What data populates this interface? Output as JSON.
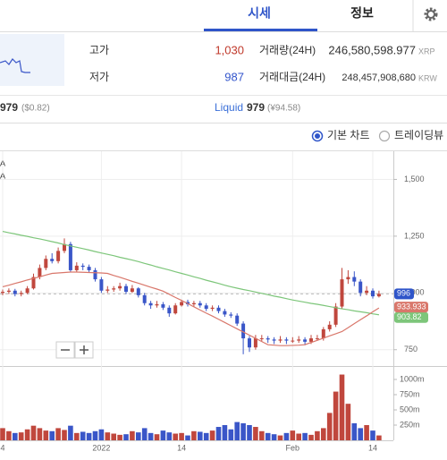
{
  "tabs": [
    "시세",
    "정보"
  ],
  "stats": {
    "high_label": "고가",
    "high": "1,030",
    "low_label": "저가",
    "low": "987",
    "volume_label": "거래량(24H)",
    "volume": "246,580,598.977",
    "volume_unit": "XRP",
    "value_label": "거래대금(24H)",
    "value": "248,457,908,680",
    "value_unit": "KRW"
  },
  "prices": [
    {
      "price": "979",
      "converted": "($0.82)"
    },
    {
      "exchange": "Liquid",
      "price": "979",
      "converted": "(¥94.58)"
    }
  ],
  "chart_options": [
    {
      "label": "기본 차트",
      "selected": true
    },
    {
      "label": "트레이딩뷰",
      "selected": false
    }
  ],
  "chart": {
    "type": "candlestick",
    "legend_fragments": [
      "A",
      "A"
    ],
    "categories": [
      "4",
      null,
      null,
      null,
      null,
      null,
      null,
      null,
      null,
      null,
      null,
      null,
      null,
      null,
      null,
      null,
      "2022",
      null,
      null,
      null,
      null,
      null,
      null,
      null,
      null,
      null,
      null,
      null,
      null,
      "14",
      null,
      null,
      null,
      null,
      null,
      null,
      null,
      null,
      null,
      null,
      null,
      null,
      null,
      null,
      null,
      null,
      null,
      "Feb",
      null,
      null,
      null,
      null,
      null,
      null,
      null,
      null,
      null,
      null,
      null,
      null,
      "14",
      null
    ],
    "open": [
      1000,
      1005,
      1010,
      995,
      1000,
      1020,
      1070,
      1110,
      1150,
      1140,
      1185,
      1215,
      1100,
      1120,
      1115,
      1100,
      1060,
      1010,
      1015,
      1020,
      1030,
      1005,
      1020,
      990,
      955,
      945,
      950,
      935,
      910,
      945,
      960,
      950,
      955,
      945,
      930,
      935,
      920,
      905,
      900,
      865,
      800,
      760,
      800,
      800,
      795,
      790,
      795,
      790,
      790,
      795,
      785,
      800,
      800,
      840,
      860,
      940,
      1060,
      1070,
      1050,
      1000,
      1010,
      985
    ],
    "high": [
      1015,
      1020,
      1018,
      1010,
      1030,
      1085,
      1125,
      1165,
      1175,
      1200,
      1240,
      1225,
      1135,
      1130,
      1125,
      1110,
      1070,
      1030,
      1030,
      1045,
      1040,
      1035,
      1025,
      1000,
      965,
      965,
      960,
      945,
      955,
      970,
      970,
      965,
      965,
      955,
      945,
      945,
      930,
      915,
      910,
      875,
      810,
      815,
      815,
      810,
      805,
      810,
      805,
      805,
      810,
      805,
      815,
      815,
      850,
      875,
      955,
      1110,
      1100,
      1095,
      1060,
      1030,
      1020,
      1010
    ],
    "low": [
      990,
      995,
      985,
      985,
      995,
      1015,
      1060,
      1100,
      1130,
      1130,
      1175,
      1090,
      1090,
      1100,
      1090,
      1050,
      1000,
      1000,
      1005,
      1010,
      995,
      1000,
      980,
      945,
      930,
      935,
      925,
      895,
      905,
      940,
      940,
      940,
      935,
      920,
      920,
      910,
      895,
      890,
      855,
      730,
      740,
      750,
      785,
      780,
      775,
      780,
      775,
      780,
      780,
      770,
      775,
      790,
      790,
      830,
      850,
      930,
      1040,
      1030,
      985,
      990,
      975,
      980
    ],
    "close": [
      1005,
      1010,
      995,
      1000,
      1020,
      1070,
      1110,
      1150,
      1140,
      1185,
      1215,
      1100,
      1120,
      1115,
      1100,
      1060,
      1010,
      1015,
      1020,
      1030,
      1005,
      1020,
      990,
      955,
      945,
      950,
      935,
      910,
      945,
      960,
      950,
      955,
      945,
      930,
      935,
      920,
      905,
      900,
      865,
      800,
      760,
      800,
      800,
      795,
      790,
      795,
      790,
      790,
      795,
      785,
      800,
      800,
      840,
      860,
      940,
      1060,
      1070,
      1050,
      1000,
      1010,
      985,
      996
    ],
    "volume": [
      200,
      150,
      120,
      130,
      180,
      240,
      200,
      160,
      150,
      200,
      170,
      240,
      120,
      140,
      120,
      150,
      180,
      130,
      110,
      90,
      100,
      150,
      130,
      200,
      120,
      100,
      160,
      130,
      110,
      120,
      80,
      150,
      140,
      120,
      160,
      220,
      250,
      180,
      300,
      280,
      250,
      220,
      150,
      120,
      100,
      80,
      120,
      160,
      110,
      120,
      90,
      150,
      200,
      450,
      800,
      1080,
      600,
      280,
      200,
      250,
      160,
      80
    ],
    "up_color": "#c0473d",
    "down_color": "#3a56c8",
    "ylim": [
      682,
      1624
    ],
    "yticks": [
      750,
      {
        "value": 1000,
        "label": "1,000"
      },
      {
        "value": 1250,
        "label": "1,250"
      },
      {
        "value": 1500,
        "label": "1,500"
      }
    ],
    "volume_ylim": [
      0,
      1176
    ],
    "volume_ticks": [
      {
        "value": 250,
        "label": "250m"
      },
      {
        "value": 500,
        "label": "500m"
      },
      {
        "value": 750,
        "label": "750m"
      },
      {
        "value": 1000,
        "label": "1000m"
      }
    ],
    "moving_averages": [
      {
        "color": "#7dc67a",
        "values": [
          1271,
          1265,
          1260,
          1254,
          1249,
          1243,
          1238,
          1232,
          1226,
          1220,
          1213,
          1207,
          1201,
          1195,
          1189,
          1182,
          1176,
          1170,
          1164,
          1157,
          1151,
          1145,
          1138,
          1130,
          1123,
          1115,
          1108,
          1101,
          1093,
          1086,
          1079,
          1071,
          1064,
          1056,
          1049,
          1042,
          1034,
          1027,
          1021,
          1015,
          1010,
          1004,
          998,
          992,
          986,
          981,
          975,
          969,
          964,
          959,
          954,
          950,
          945,
          940,
          935,
          930,
          926,
          921,
          917,
          913,
          908,
          903.82
        ]
      },
      {
        "color": "#d9776b",
        "values": [
          1027,
          1034,
          1042,
          1049,
          1057,
          1064,
          1071,
          1079,
          1086,
          1088,
          1090,
          1092,
          1092,
          1091,
          1090,
          1089,
          1088,
          1086,
          1077,
          1069,
          1060,
          1051,
          1043,
          1034,
          1025,
          1017,
          1008,
          994,
          980,
          967,
          953,
          939,
          925,
          911,
          898,
          884,
          870,
          856,
          842,
          828,
          814,
          800,
          786,
          772,
          770,
          768,
          768,
          769,
          770,
          772,
          782,
          791,
          801,
          811,
          820,
          830,
          847,
          865,
          882,
          899,
          917,
          933.933
        ]
      }
    ]
  }
}
